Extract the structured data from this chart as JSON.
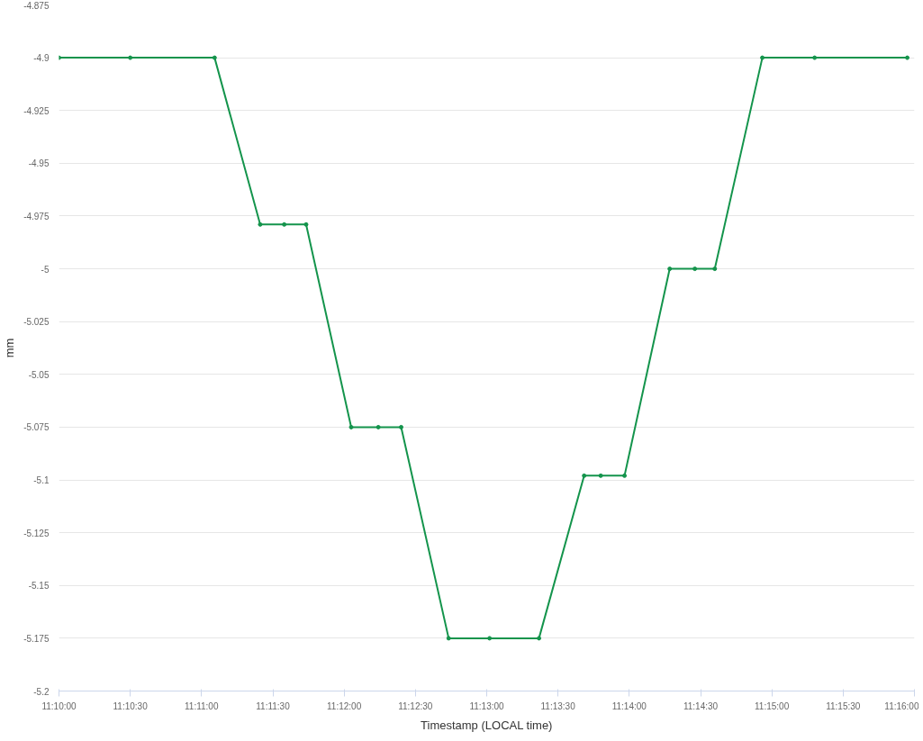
{
  "chart_data": {
    "type": "line",
    "xlabel": "Timestamp (LOCAL time)",
    "ylabel": "mm",
    "x": [
      11.16667,
      11.175,
      11.18486,
      11.19019,
      11.193,
      11.19556,
      11.20083,
      11.204,
      11.20667,
      11.21222,
      11.217,
      11.22278,
      11.22806,
      11.23,
      11.23278,
      11.23806,
      11.241,
      11.24333,
      11.24889,
      11.255,
      11.26583
    ],
    "series": [
      {
        "color": "#14944c",
        "values": [
          -4.9,
          -4.9,
          -4.9,
          -4.979,
          -4.979,
          -4.979,
          -5.075,
          -5.075,
          -5.075,
          -5.175,
          -5.175,
          -5.175,
          -5.098,
          -5.098,
          -5.098,
          -5.0,
          -5.0,
          -5.0,
          -4.9,
          -4.9,
          -4.9
        ]
      }
    ],
    "xlim": [
      11.16667,
      11.26667
    ],
    "xticks": [
      {
        "value": 11.16667,
        "label": "11:10:00"
      },
      {
        "value": 11.175,
        "label": "11:10:30"
      },
      {
        "value": 11.18333,
        "label": "11:11:00"
      },
      {
        "value": 11.19167,
        "label": "11:11:30"
      },
      {
        "value": 11.2,
        "label": "11:12:00"
      },
      {
        "value": 11.20833,
        "label": "11:12:30"
      },
      {
        "value": 11.21667,
        "label": "11:13:00"
      },
      {
        "value": 11.225,
        "label": "11:13:30"
      },
      {
        "value": 11.23333,
        "label": "11:14:00"
      },
      {
        "value": 11.24167,
        "label": "11:14:30"
      },
      {
        "value": 11.25,
        "label": "11:15:00"
      },
      {
        "value": 11.25833,
        "label": "11:15:30"
      },
      {
        "value": 11.26667,
        "label": "11:16:00"
      }
    ],
    "ylim": [
      -5.2,
      -4.875
    ],
    "yticks": [
      -4.875,
      -4.9,
      -4.925,
      -4.95,
      -4.975,
      -5,
      -5.025,
      -5.05,
      -5.075,
      -5.1,
      -5.125,
      -5.15,
      -5.175,
      -5.2
    ],
    "grid": "y",
    "marker": "circle",
    "line_style": "solid"
  }
}
